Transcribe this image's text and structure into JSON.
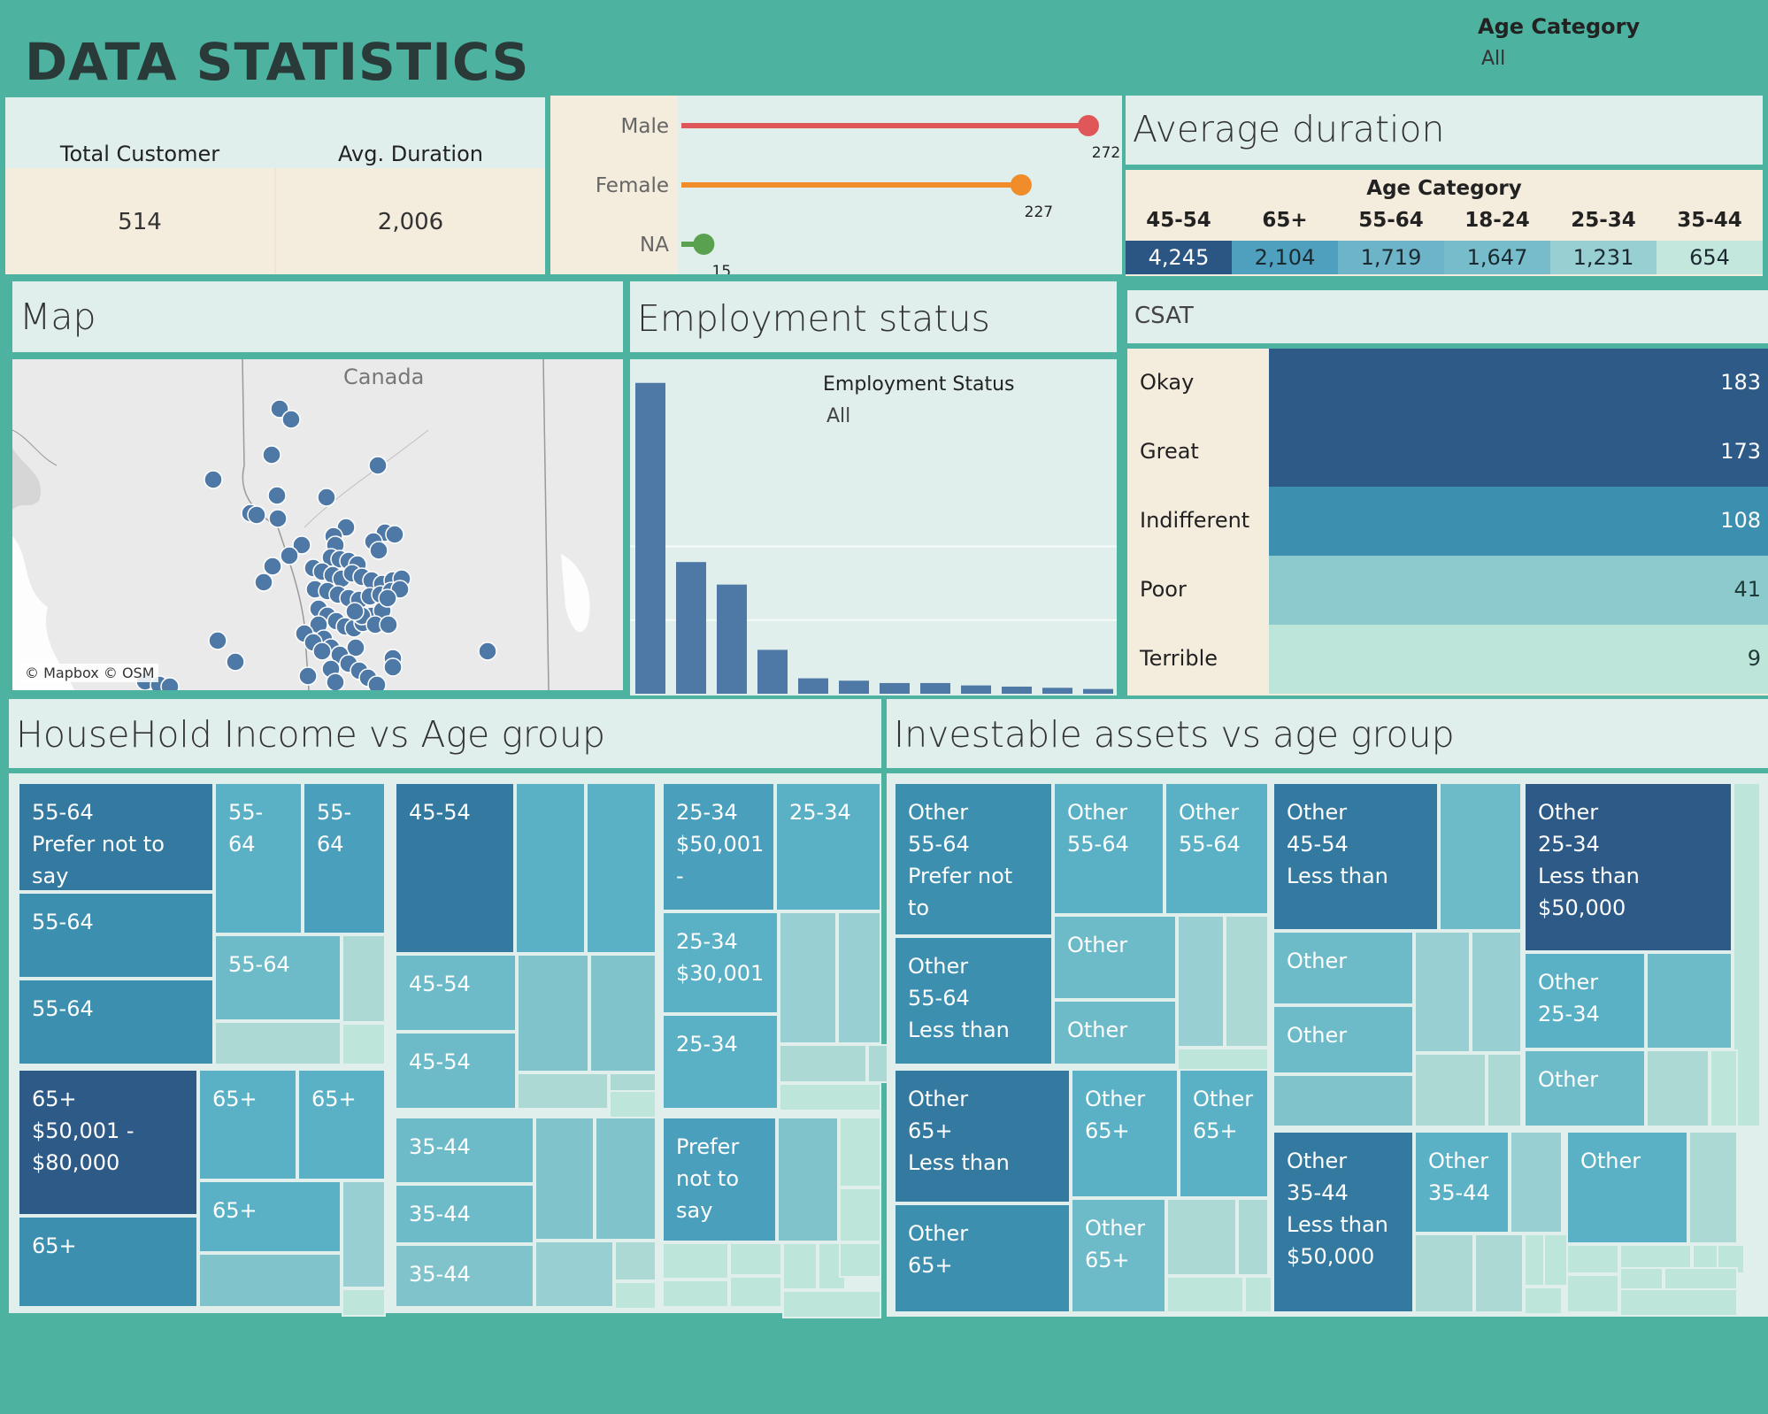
{
  "header": {
    "title": "DATA STATISTICS",
    "filter_label": "Age Category",
    "filter_value": "All"
  },
  "kpis": {
    "total_customer_label": "Total Customer",
    "total_customer_value": "514",
    "avg_duration_label": "Avg. Duration",
    "avg_duration_value": "2,006"
  },
  "gender": {
    "items": [
      {
        "label": "Male",
        "value": 272,
        "value_text": "272",
        "color": "#e05759"
      },
      {
        "label": "Female",
        "value": 227,
        "value_text": "227",
        "color": "#f08c2a"
      },
      {
        "label": "NA",
        "value": 15,
        "value_text": "15",
        "color": "#59a14f"
      }
    ]
  },
  "avg_duration": {
    "title": "Average duration",
    "header": "Age Category",
    "columns": [
      {
        "label": "45-54",
        "value": "4,245",
        "color": "#2b5683",
        "text": "#ffffff"
      },
      {
        "label": "65+",
        "value": "2,104",
        "color": "#4f9fbf",
        "text": "#1a2a30"
      },
      {
        "label": "55-64",
        "value": "1,719",
        "color": "#6db4c8",
        "text": "#1a2a30"
      },
      {
        "label": "18-24",
        "value": "1,647",
        "color": "#76bccb",
        "text": "#1a2a30"
      },
      {
        "label": "25-34",
        "value": "1,231",
        "color": "#97cfd2",
        "text": "#1a2a30"
      },
      {
        "label": "35-44",
        "value": "654",
        "color": "#c4e7dd",
        "text": "#1a2a30"
      }
    ]
  },
  "map": {
    "title": "Map",
    "country_label": "Canada",
    "attribution": "© Mapbox © OSM"
  },
  "employment": {
    "title": "Employment status",
    "filter_label": "Employment Status",
    "filter_value": "All"
  },
  "chart_data": {
    "type": "bar",
    "title": "",
    "values": [
      262,
      111,
      92,
      37,
      13,
      11,
      9,
      9,
      7,
      6,
      5,
      4
    ],
    "ylim": [
      0,
      270
    ],
    "grid": true
  },
  "csat": {
    "title": "CSAT",
    "rows": [
      {
        "label": "Okay",
        "value": "183",
        "color": "#2d5a86",
        "text": "#ffffff"
      },
      {
        "label": "Great",
        "value": "173",
        "color": "#2d5a86",
        "text": "#ffffff"
      },
      {
        "label": "Indifferent",
        "value": "108",
        "color": "#3c8fae",
        "text": "#ffffff"
      },
      {
        "label": "Poor",
        "value": "41",
        "color": "#8ccacd",
        "text": "#1f3b3a"
      },
      {
        "label": "Terrible",
        "value": "9",
        "color": "#bde5d9",
        "text": "#1f3b3a"
      }
    ]
  },
  "household": {
    "title": "HouseHold Income vs Age group",
    "cells": {
      "a1": "55-64\nPrefer not to say",
      "a2": "55-64",
      "a3": "55-64",
      "a4": "55-64",
      "a5": "55-64",
      "a6": "55-64",
      "b1": "45-54",
      "b2": "45-54",
      "b3": "45-54",
      "c1": "25-34\n$50,001\n-",
      "c2": "25-34",
      "c3": "25-34\n$30,001",
      "c4": "25-34",
      "d1": "65+\n$50,001 -\n$80,000",
      "d2": "65+",
      "d3": "65+",
      "d4": "65+",
      "d5": "65+",
      "e1": "35-44",
      "e2": "35-44",
      "e3": "35-44",
      "f1": "Prefer\nnot to\nsay"
    }
  },
  "investable": {
    "title": "Investable assets vs age group",
    "cells": {
      "a1": "Other\n55-64\nPrefer not to\nsay",
      "a2": "Other\n55-64",
      "a3": "Other\n55-64",
      "a4": "Other\n55-64\nLess than",
      "a5": "Other",
      "a6": "Other",
      "b1": "Other\n45-54\nLess than",
      "b2": "Other",
      "b3": "Other",
      "c1": "Other\n25-34\nLess than\n$50,000",
      "c2": "Other\n25-34",
      "c3": "Other",
      "d1": "Other\n65+\nLess than",
      "d2": "Other\n65+",
      "d3": "Other\n65+",
      "d4": "Other\n65+",
      "d5": "Other\n65+",
      "e1": "Other\n35-44\nLess than\n$50,000",
      "e2": "Other\n35-44",
      "e3": "Other"
    }
  }
}
